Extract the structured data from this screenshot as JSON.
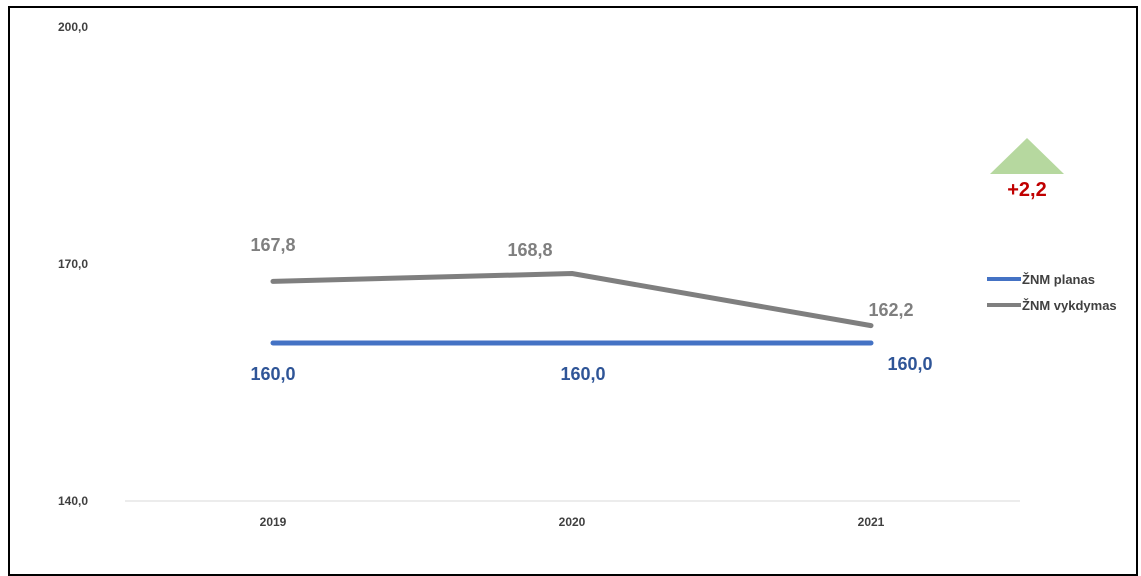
{
  "chart_data": {
    "type": "line",
    "categories": [
      "2019",
      "2020",
      "2021"
    ],
    "series": [
      {
        "name": "ŽNM planas",
        "values": [
          160.0,
          160.0,
          160.0
        ],
        "labels": [
          "160,0",
          "160,0",
          "160,0"
        ],
        "color": "#4472C4",
        "label_color": "#2F5597"
      },
      {
        "name": "ŽNM vykdymas",
        "values": [
          167.8,
          168.8,
          162.2
        ],
        "labels": [
          "167,8",
          "168,8",
          "162,2"
        ],
        "color": "#7F7F7F",
        "label_color": "#7F7F7F"
      }
    ],
    "y_ticks": [
      {
        "value": 140,
        "label": "140,0"
      },
      {
        "value": 170,
        "label": "170,0"
      },
      {
        "value": 200,
        "label": "200,0"
      }
    ],
    "ylim": [
      140,
      200
    ],
    "legend_position": "right",
    "annotation": {
      "text": "+2,2",
      "color": "#C00000",
      "triangle_color": "#A9D18E"
    }
  }
}
